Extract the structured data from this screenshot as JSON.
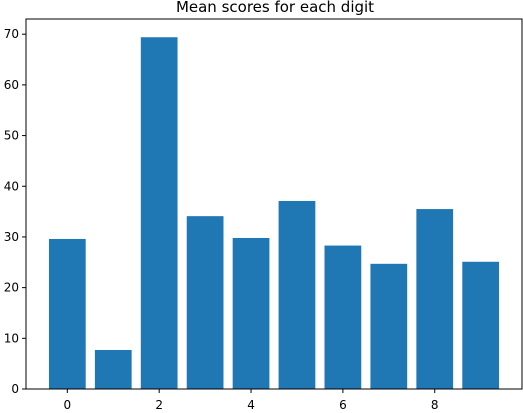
{
  "chart_data": {
    "type": "bar",
    "title": "Mean scores for each digit",
    "xlabel": "",
    "ylabel": "",
    "categories": [
      0,
      1,
      2,
      3,
      4,
      5,
      6,
      7,
      8,
      9
    ],
    "values": [
      29.6,
      7.7,
      69.4,
      34.1,
      29.8,
      37.1,
      28.3,
      24.7,
      35.5,
      25.1
    ],
    "bar_color": "#1f77b4",
    "xlim": [
      -0.9,
      9.9
    ],
    "ylim": [
      0,
      73
    ],
    "xticks": [
      0,
      2,
      4,
      6,
      8
    ],
    "yticks": [
      0,
      10,
      20,
      30,
      40,
      50,
      60,
      70
    ],
    "grid": false
  }
}
